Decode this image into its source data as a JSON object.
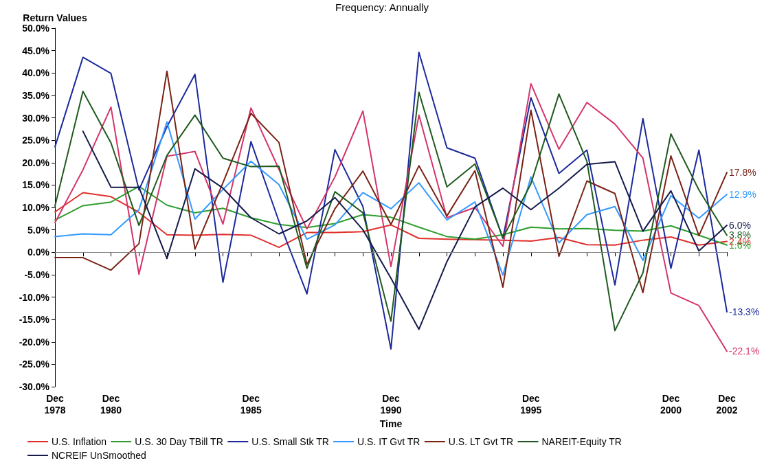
{
  "chart_data": {
    "type": "line",
    "title": "Frequency: Annually",
    "xlabel": "Time",
    "ylabel": "Return Values",
    "categories": [
      "Dec\n1978",
      null,
      "Dec\n1980",
      null,
      null,
      null,
      null,
      "Dec\n1985",
      null,
      null,
      null,
      null,
      "Dec\n1990",
      null,
      null,
      null,
      null,
      "Dec\n1995",
      null,
      null,
      null,
      null,
      "Dec\n2000",
      null,
      "Dec\n2002"
    ],
    "ylim": [
      -30,
      50
    ],
    "yticks": [
      {
        "value": -30,
        "label": "-30.0%"
      },
      {
        "value": -25,
        "label": "-25.0%"
      },
      {
        "value": -20,
        "label": "-20.0%"
      },
      {
        "value": -15,
        "label": "-15.0%"
      },
      {
        "value": -10,
        "label": "-10.0%"
      },
      {
        "value": -5,
        "label": "-5.0%"
      },
      {
        "value": 0,
        "label": "0.0%"
      },
      {
        "value": 5,
        "label": "5.0%"
      },
      {
        "value": 10,
        "label": "10.0%"
      },
      {
        "value": 15,
        "label": "15.0%"
      },
      {
        "value": 20,
        "label": "20.0%"
      },
      {
        "value": 25,
        "label": "25.0%"
      },
      {
        "value": 30,
        "label": "30.0%"
      },
      {
        "value": 35,
        "label": "35.0%"
      },
      {
        "value": 40,
        "label": "40.0%"
      },
      {
        "value": 45,
        "label": "45.0%"
      },
      {
        "value": 50,
        "label": "50.0%"
      }
    ],
    "grid": false,
    "legend": "bottom",
    "marker": "none",
    "ref_lines": [
      {
        "axis": "y",
        "value": 0,
        "color": "#808080"
      }
    ],
    "series": [
      {
        "name": "U.S. Inflation",
        "color": "#e0302c",
        "values": [
          9.0,
          13.3,
          12.4,
          8.9,
          3.9,
          3.8,
          4.0,
          3.8,
          1.1,
          4.4,
          4.4,
          4.6,
          6.1,
          3.1,
          2.9,
          2.8,
          2.7,
          2.5,
          3.3,
          1.7,
          1.6,
          2.7,
          3.4,
          1.6,
          2.4
        ],
        "value_labels": [
          null,
          null,
          null,
          null,
          null,
          null,
          null,
          null,
          null,
          null,
          null,
          null,
          null,
          null,
          null,
          null,
          null,
          null,
          null,
          null,
          null,
          null,
          null,
          null,
          "2.4%"
        ]
      },
      {
        "name": "U.S. 30 Day TBill TR",
        "color": "#2e9e2e",
        "values": [
          7.2,
          10.4,
          11.2,
          14.7,
          10.5,
          8.8,
          9.8,
          7.7,
          6.2,
          5.5,
          6.4,
          8.4,
          7.8,
          5.6,
          3.5,
          2.9,
          3.9,
          5.6,
          5.2,
          5.3,
          4.9,
          4.7,
          5.9,
          3.8,
          1.6
        ],
        "value_labels": [
          null,
          null,
          null,
          null,
          null,
          null,
          null,
          null,
          null,
          null,
          null,
          null,
          null,
          null,
          null,
          null,
          null,
          null,
          null,
          null,
          null,
          null,
          null,
          null,
          "1.6%"
        ]
      },
      {
        "name": "U.S. Small Stk TR",
        "color": "#1c2a9c",
        "values": [
          23.5,
          43.5,
          39.9,
          13.9,
          28.0,
          39.7,
          -6.7,
          24.7,
          6.9,
          -9.3,
          22.9,
          10.2,
          -21.6,
          44.6,
          23.3,
          21.0,
          3.1,
          34.5,
          17.6,
          22.8,
          -7.3,
          29.8,
          -3.6,
          22.8,
          -13.3
        ],
        "value_labels": [
          null,
          null,
          null,
          null,
          null,
          null,
          null,
          null,
          null,
          null,
          null,
          null,
          null,
          null,
          null,
          null,
          null,
          null,
          null,
          null,
          null,
          null,
          null,
          null,
          "-13.3%"
        ]
      },
      {
        "color": "#d4346a",
        "values": [
          6.6,
          18.4,
          32.4,
          -4.9,
          21.4,
          22.5,
          6.3,
          32.2,
          18.5,
          5.2,
          16.8,
          31.5,
          -3.2,
          30.6,
          7.7,
          10.0,
          1.3,
          37.6,
          23.0,
          33.4,
          28.6,
          21.0,
          -9.1,
          -11.9,
          -22.1
        ],
        "value_labels": [
          null,
          null,
          null,
          null,
          null,
          null,
          null,
          null,
          null,
          null,
          null,
          null,
          null,
          null,
          null,
          null,
          null,
          null,
          null,
          null,
          null,
          null,
          null,
          null,
          "-22.1%"
        ]
      },
      {
        "name": "U.S. IT Gvt TR",
        "color": "#3399ff",
        "values": [
          3.5,
          4.1,
          3.9,
          9.5,
          29.1,
          7.4,
          14.0,
          20.3,
          15.1,
          2.9,
          6.1,
          13.3,
          9.7,
          15.5,
          7.2,
          11.2,
          -5.1,
          16.8,
          2.1,
          8.4,
          10.2,
          -1.8,
          12.6,
          7.6,
          12.9
        ],
        "value_labels": [
          null,
          null,
          null,
          null,
          null,
          null,
          null,
          null,
          null,
          null,
          null,
          null,
          null,
          null,
          null,
          null,
          null,
          null,
          null,
          null,
          null,
          null,
          null,
          null,
          "12.9%"
        ]
      },
      {
        "name": "U.S. LT Gvt TR",
        "color": "#7a2214",
        "values": [
          -1.2,
          -1.2,
          -4.0,
          1.9,
          40.4,
          0.7,
          15.5,
          31.0,
          24.5,
          -2.7,
          9.7,
          18.1,
          6.2,
          19.3,
          8.1,
          18.2,
          -7.8,
          31.7,
          -0.9,
          15.9,
          13.1,
          -9.0,
          21.5,
          3.7,
          17.8
        ],
        "value_labels": [
          null,
          null,
          null,
          null,
          null,
          null,
          null,
          null,
          null,
          null,
          null,
          null,
          null,
          null,
          null,
          null,
          null,
          null,
          null,
          null,
          null,
          null,
          null,
          null,
          "17.8%"
        ]
      },
      {
        "name": "NAREIT-Equity TR",
        "color": "#1f5a1f",
        "values": [
          10.3,
          35.9,
          24.4,
          6.0,
          21.6,
          30.6,
          21.0,
          19.1,
          19.2,
          -3.6,
          13.5,
          8.8,
          -15.4,
          35.7,
          14.6,
          19.7,
          3.2,
          15.3,
          35.3,
          20.3,
          -17.5,
          -4.6,
          26.4,
          13.9,
          3.8
        ],
        "value_labels": [
          null,
          null,
          null,
          null,
          null,
          null,
          null,
          null,
          null,
          null,
          null,
          null,
          null,
          null,
          null,
          null,
          null,
          null,
          null,
          null,
          null,
          null,
          null,
          null,
          "3.8%"
        ]
      },
      {
        "name": "NCREIF UnSmoothed",
        "color": "#141a4c",
        "values": [
          null,
          27.0,
          14.5,
          14.5,
          -1.4,
          18.6,
          14.3,
          7.7,
          4.1,
          7.0,
          12.2,
          5.0,
          -5.8,
          -17.2,
          -2.1,
          10.1,
          14.3,
          9.5,
          14.3,
          19.6,
          20.2,
          4.7,
          13.7,
          0.3,
          6.0
        ],
        "value_labels": [
          null,
          null,
          null,
          null,
          null,
          null,
          null,
          null,
          null,
          null,
          null,
          null,
          null,
          null,
          null,
          null,
          null,
          null,
          null,
          null,
          null,
          null,
          null,
          null,
          "6.0%"
        ]
      }
    ]
  }
}
